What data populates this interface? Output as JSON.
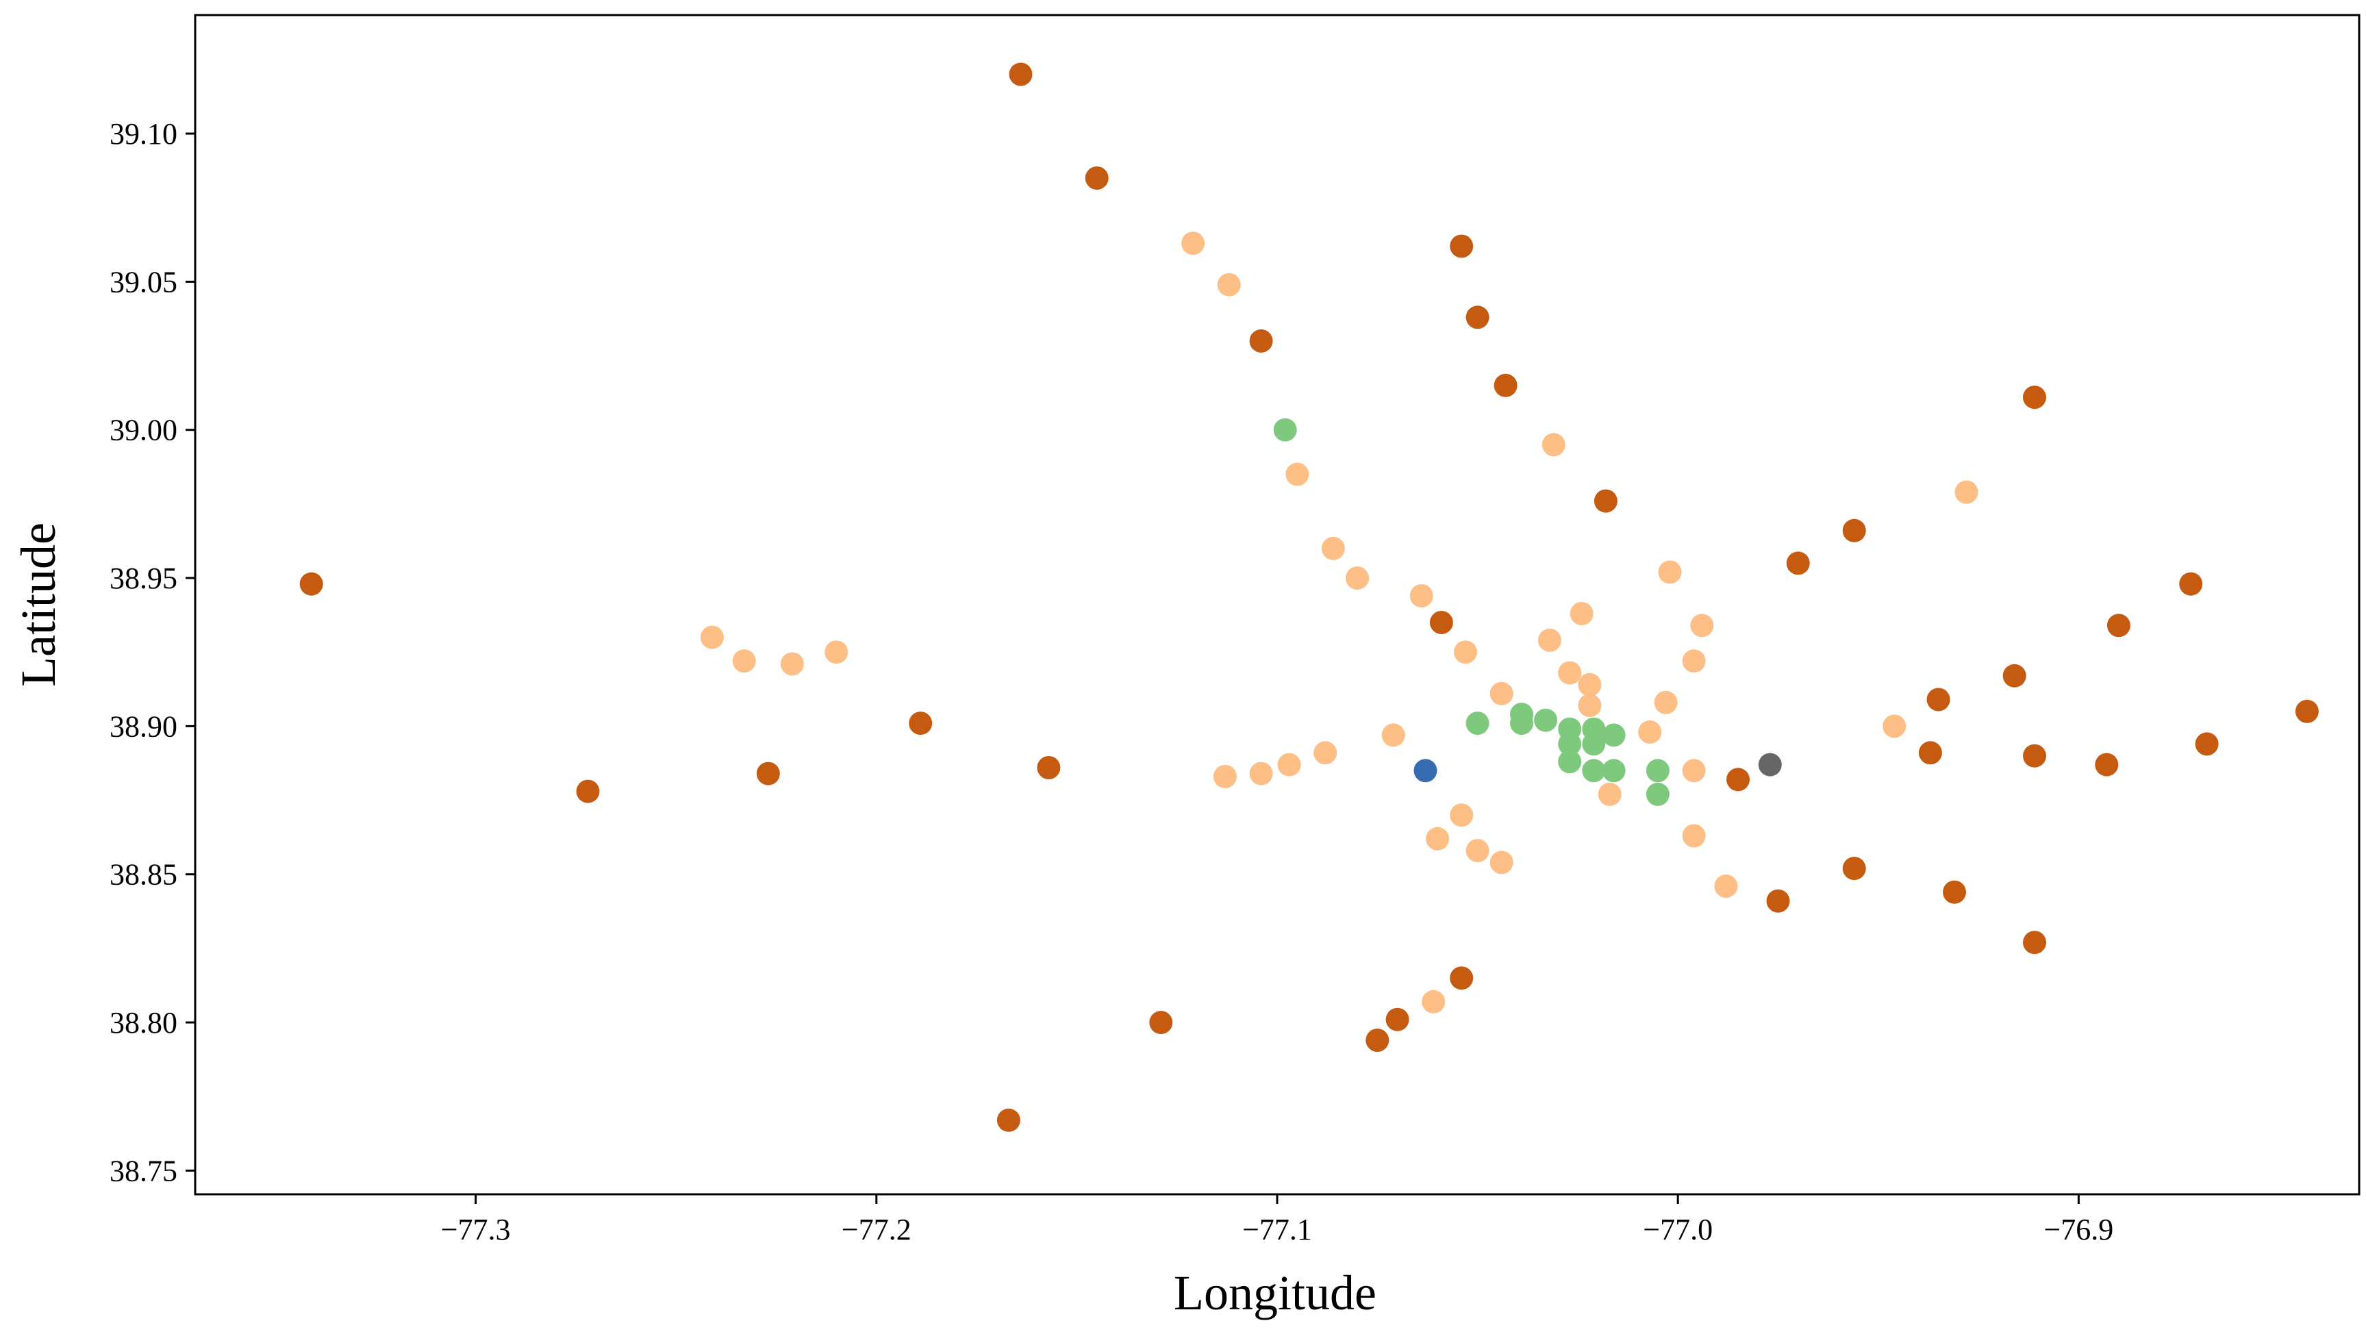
{
  "chart_data": {
    "type": "scatter",
    "title": "",
    "xlabel": "Longitude",
    "ylabel": "Latitude",
    "xlim": [
      -77.37,
      -76.83
    ],
    "ylim": [
      38.742,
      39.14
    ],
    "xticks": [
      -77.3,
      -77.2,
      -77.1,
      -77.0,
      -76.9
    ],
    "xtick_labels": [
      "−77.3",
      "−77.2",
      "−77.1",
      "−77.0",
      "−76.9"
    ],
    "yticks": [
      38.75,
      38.8,
      38.85,
      38.9,
      38.95,
      39.0,
      39.05,
      39.1
    ],
    "ytick_labels": [
      "38.75",
      "38.80",
      "38.85",
      "38.90",
      "38.95",
      "39.00",
      "39.05",
      "39.10"
    ],
    "grid": false,
    "legend": "none",
    "series": [
      {
        "color": "#c55a11",
        "points": [
          [
            -77.164,
            39.12
          ],
          [
            -77.145,
            39.085
          ],
          [
            -77.054,
            39.062
          ],
          [
            -77.05,
            39.038
          ],
          [
            -77.104,
            39.03
          ],
          [
            -77.043,
            39.015
          ],
          [
            -76.911,
            39.011
          ],
          [
            -77.018,
            38.976
          ],
          [
            -76.956,
            38.966
          ],
          [
            -76.97,
            38.955
          ],
          [
            -77.341,
            38.948
          ],
          [
            -76.872,
            38.948
          ],
          [
            -77.059,
            38.935
          ],
          [
            -76.89,
            38.934
          ],
          [
            -76.916,
            38.917
          ],
          [
            -76.935,
            38.909
          ],
          [
            -76.843,
            38.905
          ],
          [
            -77.189,
            38.901
          ],
          [
            -76.868,
            38.894
          ],
          [
            -76.937,
            38.891
          ],
          [
            -76.911,
            38.89
          ],
          [
            -76.893,
            38.887
          ],
          [
            -77.157,
            38.886
          ],
          [
            -77.227,
            38.884
          ],
          [
            -76.985,
            38.882
          ],
          [
            -77.272,
            38.878
          ],
          [
            -76.956,
            38.852
          ],
          [
            -76.931,
            38.844
          ],
          [
            -76.975,
            38.841
          ],
          [
            -76.911,
            38.827
          ],
          [
            -77.054,
            38.815
          ],
          [
            -77.129,
            38.8
          ],
          [
            -77.07,
            38.801
          ],
          [
            -77.075,
            38.794
          ],
          [
            -77.167,
            38.767
          ]
        ]
      },
      {
        "color": "#fdbf85",
        "points": [
          [
            -77.121,
            39.063
          ],
          [
            -77.112,
            39.049
          ],
          [
            -77.031,
            38.995
          ],
          [
            -77.095,
            38.985
          ],
          [
            -76.928,
            38.979
          ],
          [
            -77.086,
            38.96
          ],
          [
            -77.002,
            38.952
          ],
          [
            -77.08,
            38.95
          ],
          [
            -77.064,
            38.944
          ],
          [
            -77.024,
            38.938
          ],
          [
            -76.994,
            38.934
          ],
          [
            -77.241,
            38.93
          ],
          [
            -77.032,
            38.929
          ],
          [
            -77.053,
            38.925
          ],
          [
            -77.21,
            38.925
          ],
          [
            -77.233,
            38.922
          ],
          [
            -77.221,
            38.921
          ],
          [
            -76.996,
            38.922
          ],
          [
            -77.027,
            38.918
          ],
          [
            -77.022,
            38.914
          ],
          [
            -77.044,
            38.911
          ],
          [
            -77.022,
            38.907
          ],
          [
            -77.003,
            38.908
          ],
          [
            -76.946,
            38.9
          ],
          [
            -77.007,
            38.898
          ],
          [
            -77.071,
            38.897
          ],
          [
            -77.088,
            38.891
          ],
          [
            -77.097,
            38.887
          ],
          [
            -76.996,
            38.885
          ],
          [
            -77.104,
            38.884
          ],
          [
            -77.113,
            38.883
          ],
          [
            -77.017,
            38.877
          ],
          [
            -77.054,
            38.87
          ],
          [
            -76.996,
            38.863
          ],
          [
            -77.06,
            38.862
          ],
          [
            -77.05,
            38.858
          ],
          [
            -77.044,
            38.854
          ],
          [
            -76.988,
            38.846
          ],
          [
            -77.061,
            38.807
          ]
        ]
      },
      {
        "color": "#7fc97f",
        "points": [
          [
            -77.098,
            39.0
          ],
          [
            -77.039,
            38.904
          ],
          [
            -77.039,
            38.901
          ],
          [
            -77.05,
            38.901
          ],
          [
            -77.033,
            38.902
          ],
          [
            -77.027,
            38.899
          ],
          [
            -77.021,
            38.899
          ],
          [
            -77.016,
            38.897
          ],
          [
            -77.027,
            38.894
          ],
          [
            -77.021,
            38.894
          ],
          [
            -77.027,
            38.888
          ],
          [
            -77.021,
            38.885
          ],
          [
            -77.016,
            38.885
          ],
          [
            -77.005,
            38.885
          ],
          [
            -77.005,
            38.877
          ]
        ]
      },
      {
        "color": "#386cb0",
        "points": [
          [
            -77.063,
            38.885
          ]
        ]
      },
      {
        "color": "#666666",
        "points": [
          [
            -76.977,
            38.887
          ]
        ]
      }
    ]
  }
}
